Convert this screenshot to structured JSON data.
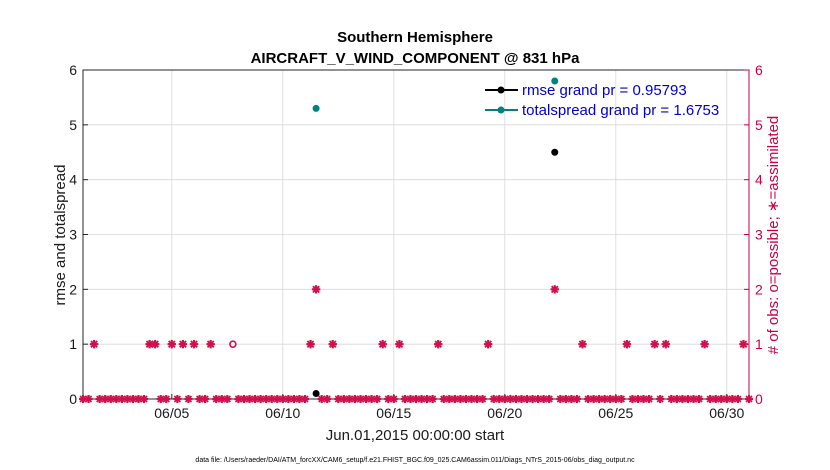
{
  "chart_data": {
    "type": "scatter",
    "title": "Southern Hemisphere",
    "subtitle": "AIRCRAFT_V_WIND_COMPONENT @ 831 hPa",
    "xlabel": "Jun.01,2015 00:00:00 start",
    "ylabel": "rmse and totalspread",
    "ylabel_right": "# of obs: o=possible; ∗=assimilated",
    "footer": "data file: /Users/raeder/DAI/ATM_forcXX/CAM6_setup/f.e21.FHIST_BGC.f09_025.CAM6assim.011/Diags_NTrS_2015-06/obs_diag_output.nc",
    "xlim": [
      1.0,
      31.0
    ],
    "ylim": [
      0,
      6
    ],
    "ylim_right": [
      0,
      6
    ],
    "x_ticks": [
      {
        "value": 5,
        "label": "06/05"
      },
      {
        "value": 10,
        "label": "06/10"
      },
      {
        "value": 15,
        "label": "06/15"
      },
      {
        "value": 20,
        "label": "06/20"
      },
      {
        "value": 25,
        "label": "06/25"
      },
      {
        "value": 30,
        "label": "06/30"
      }
    ],
    "y_ticks": [
      "0",
      "1",
      "2",
      "3",
      "4",
      "5",
      "6"
    ],
    "y_ticks_right": [
      "0",
      "1",
      "2",
      "3",
      "4",
      "5",
      "6"
    ],
    "grid": true,
    "legend_position": "top-right",
    "series": [
      {
        "name": "rmse",
        "legend": "rmse grand pr = 0.95793",
        "color": "#000000",
        "points": [
          {
            "x": 11.5,
            "y": 0.1
          },
          {
            "x": 22.25,
            "y": 4.5
          }
        ]
      },
      {
        "name": "totalspread",
        "legend": "totalspread grand pr = 1.6753",
        "color": "#008080",
        "points": [
          {
            "x": 11.5,
            "y": 5.3
          },
          {
            "x": 22.25,
            "y": 5.8
          }
        ]
      },
      {
        "name": "obs_assimilated",
        "marker": "star",
        "color": "#d0104c",
        "points": [
          {
            "x": 1.5,
            "y": 1
          },
          {
            "x": 4.0,
            "y": 1
          },
          {
            "x": 4.25,
            "y": 1
          },
          {
            "x": 5.0,
            "y": 1
          },
          {
            "x": 5.5,
            "y": 1
          },
          {
            "x": 6.0,
            "y": 1
          },
          {
            "x": 6.75,
            "y": 1
          },
          {
            "x": 11.25,
            "y": 1
          },
          {
            "x": 11.5,
            "y": 2
          },
          {
            "x": 12.25,
            "y": 1
          },
          {
            "x": 14.5,
            "y": 1
          },
          {
            "x": 15.25,
            "y": 1
          },
          {
            "x": 17.0,
            "y": 1
          },
          {
            "x": 19.25,
            "y": 1
          },
          {
            "x": 22.25,
            "y": 2
          },
          {
            "x": 23.5,
            "y": 1
          },
          {
            "x": 25.5,
            "y": 1
          },
          {
            "x": 26.75,
            "y": 1
          },
          {
            "x": 27.25,
            "y": 1
          },
          {
            "x": 29.0,
            "y": 1
          },
          {
            "x": 30.75,
            "y": 1
          }
        ]
      },
      {
        "name": "obs_possible",
        "marker": "circle",
        "color": "#d0104c",
        "points": [
          {
            "x": 7.75,
            "y": 1
          }
        ]
      }
    ]
  }
}
